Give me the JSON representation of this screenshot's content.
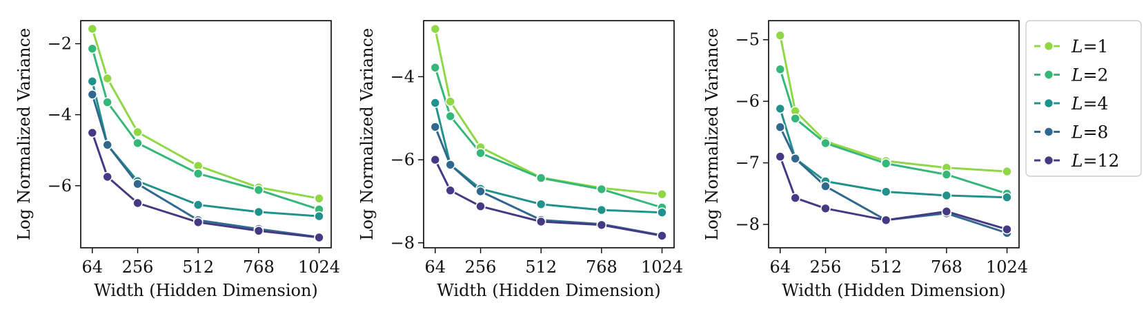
{
  "chart_data": [
    {
      "type": "line",
      "xlabel": "Width (Hidden Dimension)",
      "ylabel": "Log Normalized Variance",
      "x": [
        64,
        128,
        256,
        512,
        768,
        1024
      ],
      "xticks": [
        64,
        256,
        512,
        768,
        1024
      ],
      "xlim": [
        15,
        1075
      ],
      "ylim": [
        -7.75,
        -1.35
      ],
      "yticks": [
        -2,
        -4,
        -6
      ],
      "grid": false,
      "series": [
        {
          "name": "L=1",
          "values": [
            -1.58,
            -2.98,
            -4.49,
            -5.44,
            -6.05,
            -6.36
          ]
        },
        {
          "name": "L=2",
          "values": [
            -2.14,
            -3.65,
            -4.8,
            -5.66,
            -6.12,
            -6.67
          ]
        },
        {
          "name": "L=4",
          "values": [
            -3.06,
            -4.85,
            -5.87,
            -6.54,
            -6.74,
            -6.86
          ]
        },
        {
          "name": "L=8",
          "values": [
            -3.43,
            -4.85,
            -5.95,
            -6.97,
            -7.22,
            -7.45
          ]
        },
        {
          "name": "L=12",
          "values": [
            -4.51,
            -5.75,
            -6.49,
            -7.03,
            -7.27,
            -7.46
          ]
        }
      ]
    },
    {
      "type": "line",
      "xlabel": "Width (Hidden Dimension)",
      "ylabel": "Log Normalized Variance",
      "x": [
        64,
        128,
        256,
        512,
        768,
        1024
      ],
      "xticks": [
        64,
        256,
        512,
        768,
        1024
      ],
      "xlim": [
        15,
        1075
      ],
      "ylim": [
        -8.12,
        -2.65
      ],
      "yticks": [
        -4,
        -6,
        -8
      ],
      "grid": false,
      "series": [
        {
          "name": "L=1",
          "values": [
            -2.85,
            -4.6,
            -5.7,
            -6.43,
            -6.68,
            -6.83
          ]
        },
        {
          "name": "L=2",
          "values": [
            -3.78,
            -4.95,
            -5.84,
            -6.44,
            -6.71,
            -7.15
          ]
        },
        {
          "name": "L=4",
          "values": [
            -4.63,
            -6.12,
            -6.7,
            -7.07,
            -7.21,
            -7.27
          ]
        },
        {
          "name": "L=8",
          "values": [
            -5.21,
            -6.12,
            -6.76,
            -7.45,
            -7.55,
            -7.82
          ]
        },
        {
          "name": "L=12",
          "values": [
            -6.0,
            -6.74,
            -7.12,
            -7.49,
            -7.57,
            -7.83
          ]
        }
      ]
    },
    {
      "type": "line",
      "xlabel": "Width (Hidden Dimension)",
      "ylabel": "Log Normalized Variance",
      "x": [
        64,
        128,
        256,
        512,
        768,
        1024
      ],
      "xticks": [
        64,
        256,
        512,
        768,
        1024
      ],
      "xlim": [
        15,
        1075
      ],
      "ylim": [
        -8.38,
        -4.69
      ],
      "yticks": [
        -5,
        -6,
        -7,
        -8
      ],
      "grid": false,
      "series": [
        {
          "name": "L=1",
          "values": [
            -4.93,
            -6.16,
            -6.65,
            -6.97,
            -7.08,
            -7.14
          ]
        },
        {
          "name": "L=2",
          "values": [
            -5.48,
            -6.28,
            -6.68,
            -7.01,
            -7.19,
            -7.5
          ]
        },
        {
          "name": "L=4",
          "values": [
            -6.12,
            -6.93,
            -7.3,
            -7.47,
            -7.53,
            -7.56
          ]
        },
        {
          "name": "L=8",
          "values": [
            -6.42,
            -6.93,
            -7.38,
            -7.93,
            -7.82,
            -8.14
          ]
        },
        {
          "name": "L=12",
          "values": [
            -6.9,
            -7.57,
            -7.74,
            -7.93,
            -7.79,
            -8.08
          ]
        }
      ]
    }
  ],
  "legend": {
    "placement": "right",
    "entries": [
      {
        "prefix": "L",
        "suffix": "=1",
        "color": "#8fd744"
      },
      {
        "prefix": "L",
        "suffix": "=2",
        "color": "#35b779"
      },
      {
        "prefix": "L",
        "suffix": "=4",
        "color": "#21918c"
      },
      {
        "prefix": "L",
        "suffix": "=8",
        "color": "#31688e"
      },
      {
        "prefix": "L",
        "suffix": "=12",
        "color": "#443983"
      }
    ]
  },
  "colors": {
    "L=1": "#8fd744",
    "L=2": "#35b779",
    "L=4": "#21918c",
    "L=8": "#31688e",
    "L=12": "#443983"
  }
}
